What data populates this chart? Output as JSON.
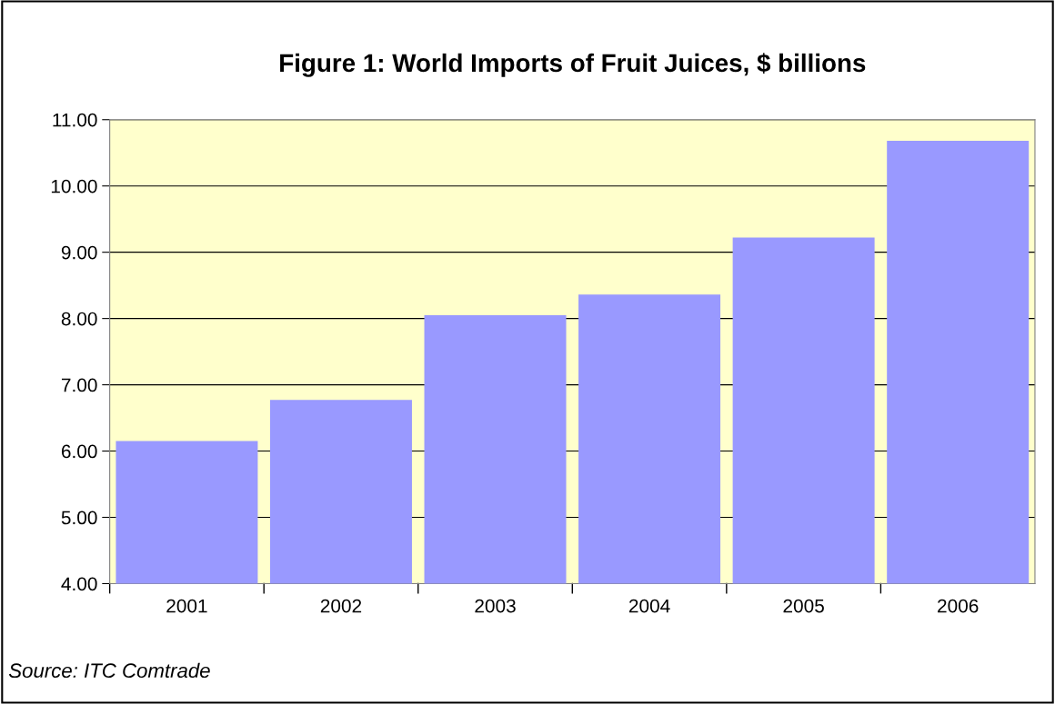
{
  "chart_data": {
    "type": "bar",
    "title": "Figure 1: World Imports of Fruit Juices, $ billions",
    "categories": [
      "2001",
      "2002",
      "2003",
      "2004",
      "2005",
      "2006"
    ],
    "values": [
      6.15,
      6.77,
      8.05,
      8.36,
      9.22,
      10.68
    ],
    "color": "#9999ff",
    "ylim": [
      4,
      11
    ],
    "yticks": [
      {
        "value": 4,
        "label": "4.00"
      },
      {
        "value": 5,
        "label": "5.00"
      },
      {
        "value": 6,
        "label": "6.00"
      },
      {
        "value": 7,
        "label": "7.00"
      },
      {
        "value": 8,
        "label": "8.00"
      },
      {
        "value": 9,
        "label": "9.00"
      },
      {
        "value": 10,
        "label": "10.00"
      },
      {
        "value": 11,
        "label": "11.00"
      }
    ],
    "grid": "y",
    "bands": [
      {
        "axis": "y",
        "from": 4,
        "to": 11,
        "color": "#ffffcc"
      }
    ],
    "annotations": [
      "Source: ITC Comtrade"
    ]
  }
}
